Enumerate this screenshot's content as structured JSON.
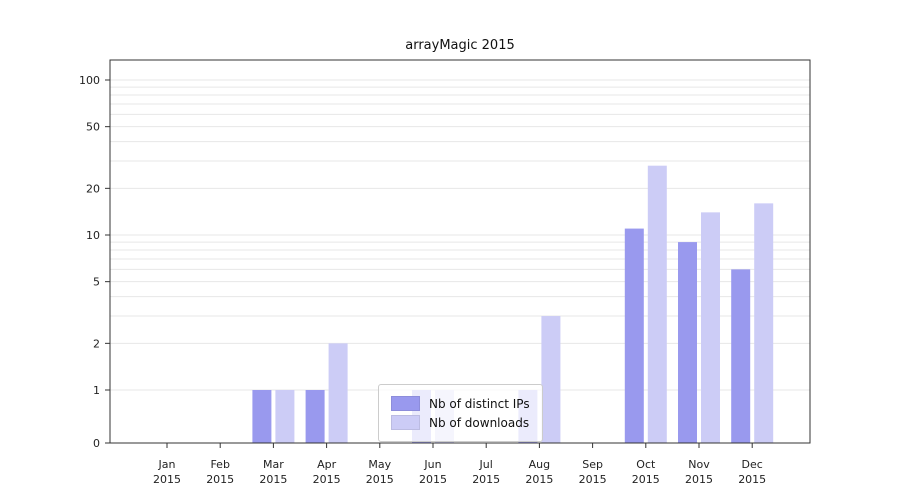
{
  "chart_data": {
    "type": "bar",
    "title": "arrayMagic 2015",
    "categories": [
      "Jan",
      "Feb",
      "Mar",
      "Apr",
      "May",
      "Jun",
      "Jul",
      "Aug",
      "Sep",
      "Oct",
      "Nov",
      "Dec"
    ],
    "year": "2015",
    "series": [
      {
        "name": "Nb of distinct IPs",
        "color": "#9999ee",
        "values": [
          0,
          0,
          1,
          1,
          0,
          1,
          0,
          1,
          0,
          11,
          9,
          6
        ]
      },
      {
        "name": "Nb of downloads",
        "color": "#ccccf6",
        "values": [
          0,
          0,
          1,
          2,
          0,
          1,
          0,
          3,
          0,
          28,
          14,
          16
        ]
      }
    ],
    "y_scale": "log",
    "y_ticks": [
      0,
      1,
      2,
      5,
      10,
      20,
      50,
      100
    ],
    "ylim": [
      0,
      100
    ],
    "xlabel": "",
    "ylabel": "",
    "grid": true,
    "grid_color": "#e7e7e7",
    "axis_color": "#333333",
    "legend_position": "bottom-center"
  }
}
